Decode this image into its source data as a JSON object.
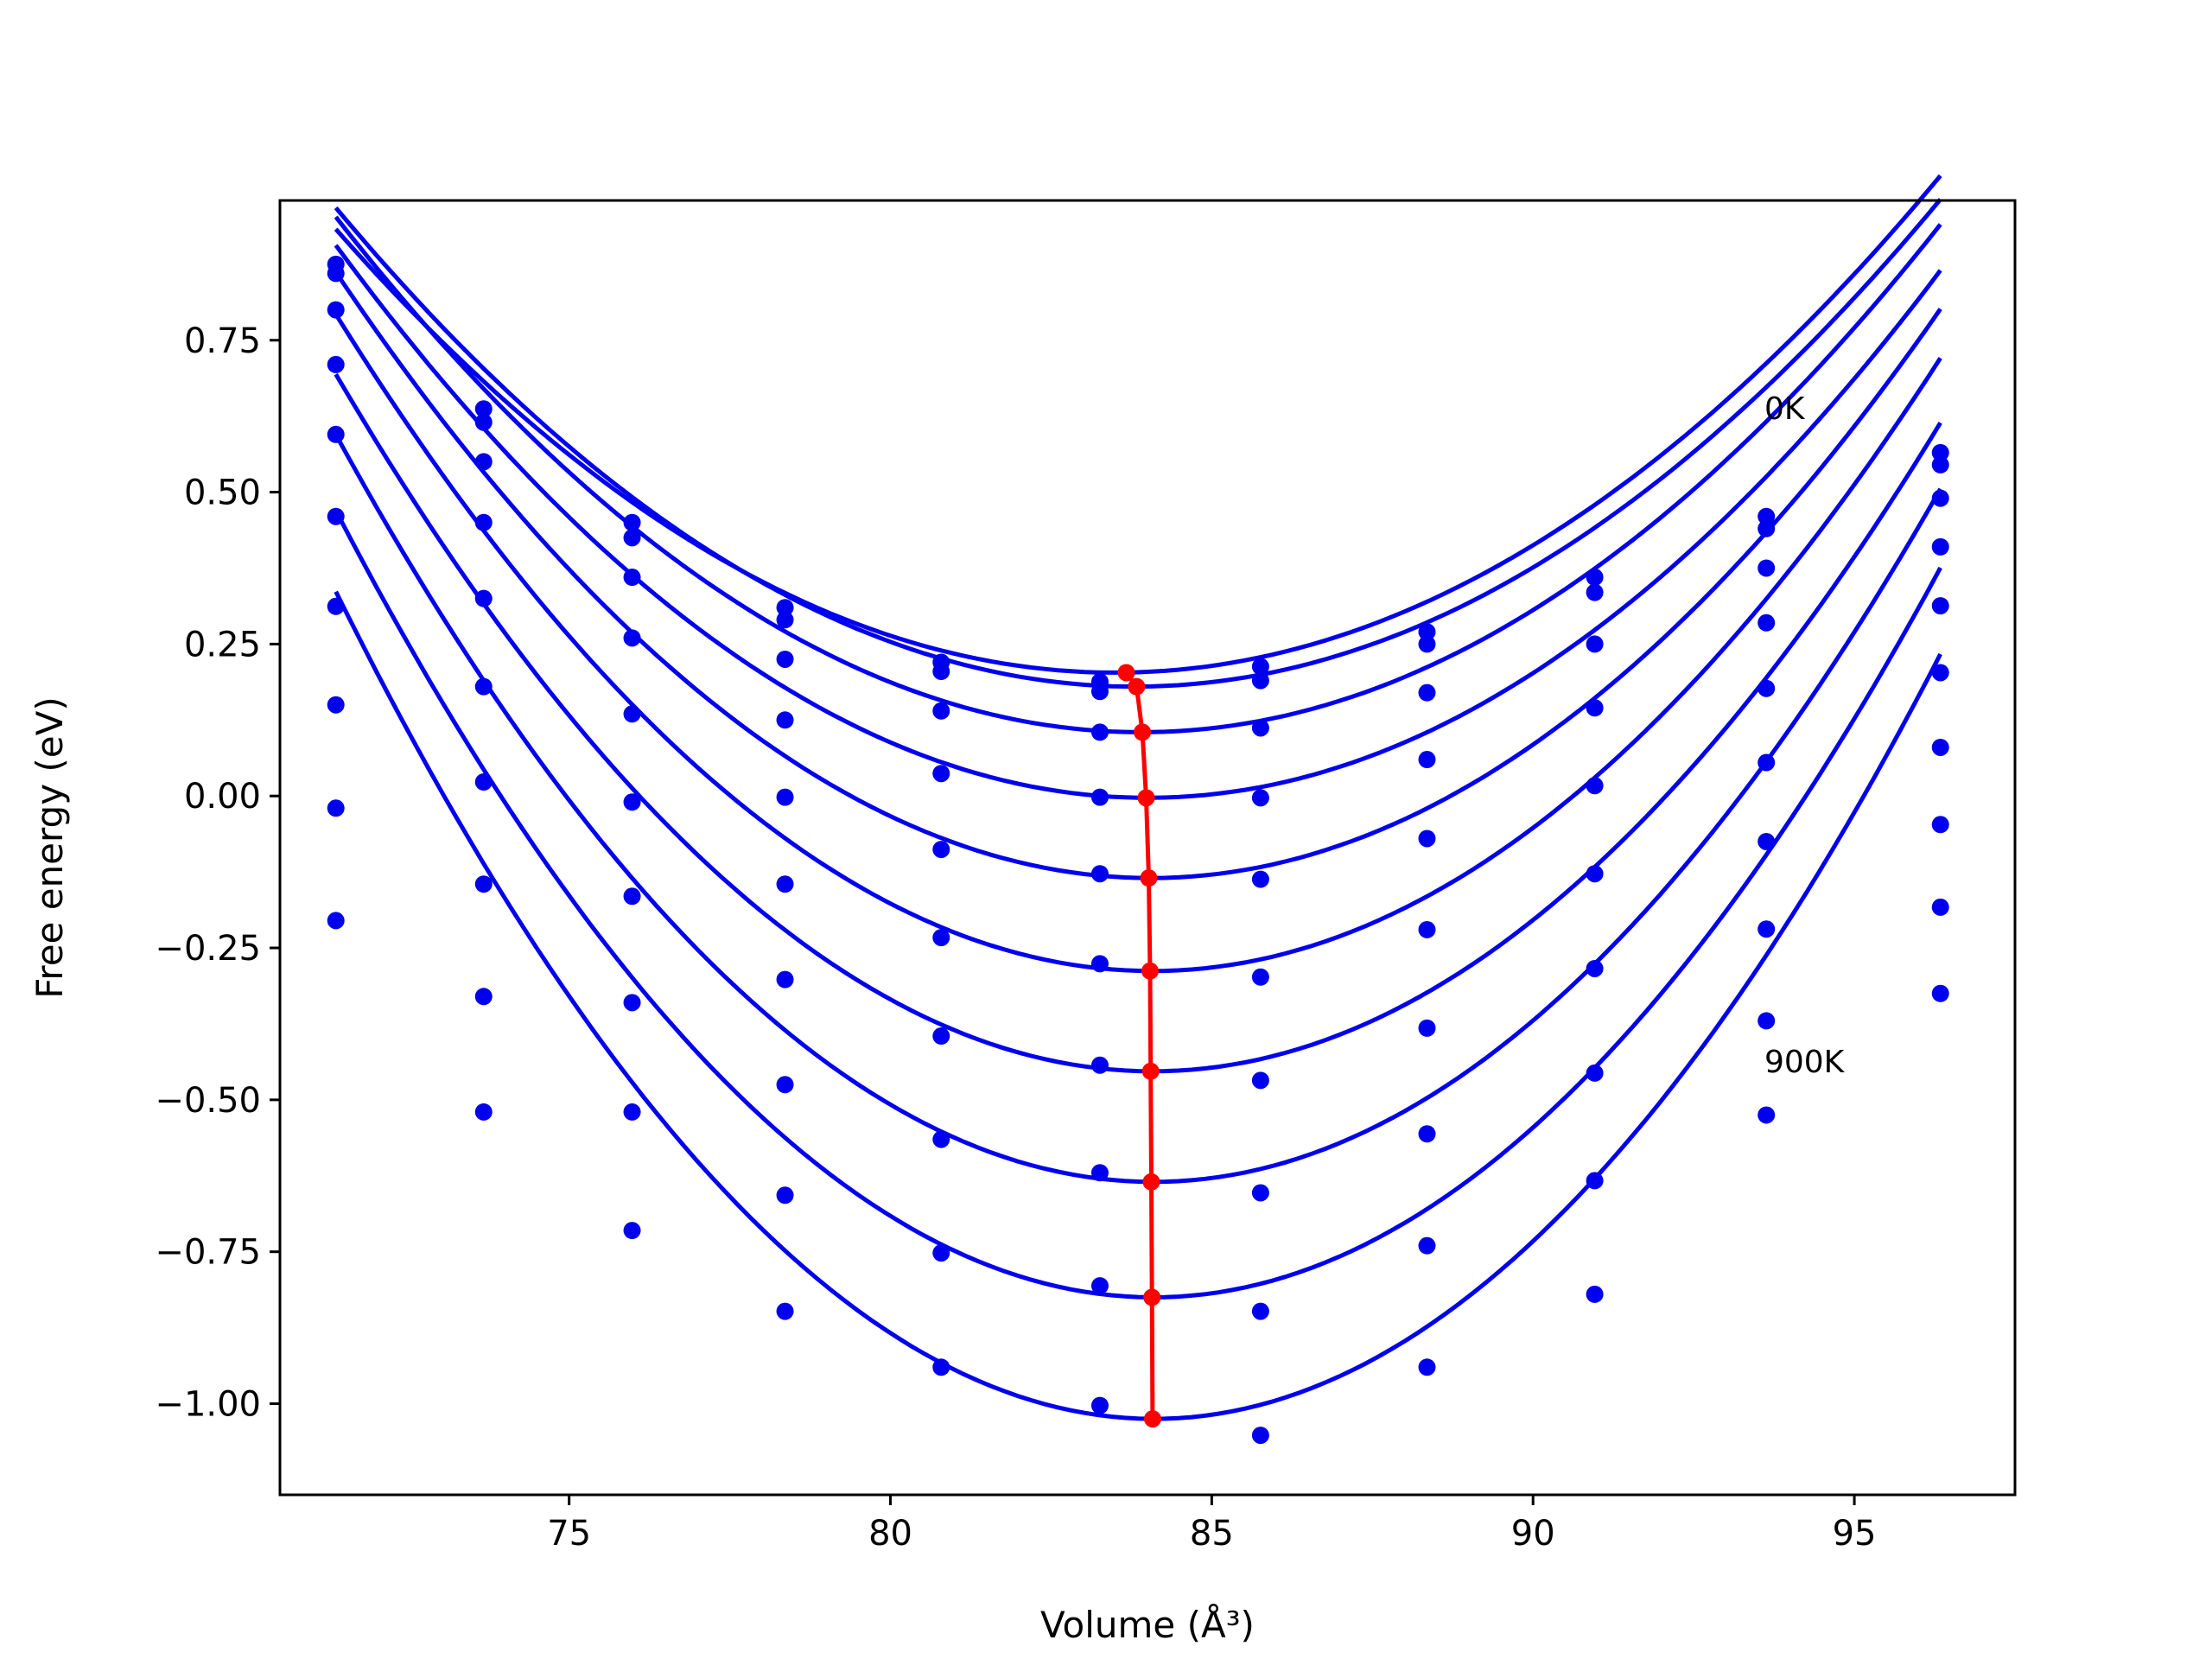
{
  "chart_data": {
    "type": "line",
    "title": "",
    "xlabel": "Volume (Å³)",
    "ylabel": "Free energy (eV)",
    "xlim": [
      70.5,
      97.5
    ],
    "ylim": [
      -1.15,
      0.98
    ],
    "xticks": [
      {
        "value": 75,
        "label": "75"
      },
      {
        "value": 80,
        "label": "80"
      },
      {
        "value": 85,
        "label": "85"
      },
      {
        "value": 90,
        "label": "90"
      },
      {
        "value": 95,
        "label": "95"
      }
    ],
    "yticks": [
      {
        "value": 0.75,
        "label": "0.75"
      },
      {
        "value": 0.5,
        "label": "0.50"
      },
      {
        "value": 0.25,
        "label": "0.25"
      },
      {
        "value": 0.0,
        "label": "0.00"
      },
      {
        "value": -0.25,
        "label": "−0.25"
      },
      {
        "value": -0.5,
        "label": "−0.50"
      },
      {
        "value": -0.75,
        "label": "−0.75"
      },
      {
        "value": -1.0,
        "label": "−1.00"
      }
    ],
    "grid": false,
    "annotations": [
      {
        "text": "0K",
        "x": 93.6,
        "y": 0.62
      },
      {
        "text": "900K",
        "x": 93.6,
        "y": -0.455
      }
    ],
    "volumes": [
      71.37,
      73.67,
      75.98,
      78.36,
      80.79,
      83.26,
      85.76,
      88.35,
      90.96,
      93.63,
      96.34
    ],
    "series": [
      {
        "points": [
          0.875,
          0.637,
          0.45,
          0.31,
          0.22,
          0.188,
          0.213,
          0.27,
          0.36,
          0.46,
          0.565
        ],
        "fit": {
          "a": 0.00496,
          "v0": 83.5,
          "e0": 0.203
        }
      },
      {
        "points": [
          0.86,
          0.615,
          0.425,
          0.29,
          0.205,
          0.172,
          0.19,
          0.25,
          0.335,
          0.44,
          0.545
        ],
        "fit": {
          "a": 0.0051,
          "v0": 83.8,
          "e0": 0.18
        }
      },
      {
        "points": [
          0.8,
          0.55,
          0.36,
          0.225,
          0.14,
          0.105,
          0.112,
          0.17,
          0.25,
          0.375,
          0.49
        ],
        "fit": {
          "a": 0.0054,
          "v0": 83.9,
          "e0": 0.105
        }
      },
      {
        "points": [
          0.71,
          0.45,
          0.26,
          0.125,
          0.037,
          -0.002,
          -0.003,
          0.06,
          0.145,
          0.285,
          0.41
        ],
        "fit": {
          "a": 0.0057,
          "v0": 84.0,
          "e0": -0.003
        }
      },
      {
        "points": [
          0.595,
          0.325,
          0.135,
          -0.002,
          -0.088,
          -0.128,
          -0.137,
          -0.07,
          0.017,
          0.177,
          0.313
        ],
        "fit": {
          "a": 0.0062,
          "v0": 84.05,
          "e0": -0.135
        }
      },
      {
        "points": [
          0.46,
          0.18,
          -0.01,
          -0.145,
          -0.233,
          -0.276,
          -0.298,
          -0.22,
          -0.128,
          0.055,
          0.203
        ],
        "fit": {
          "a": 0.0067,
          "v0": 84.07,
          "e0": -0.288
        }
      },
      {
        "points": [
          0.312,
          0.023,
          -0.165,
          -0.302,
          -0.395,
          -0.443,
          -0.468,
          -0.382,
          -0.284,
          -0.075,
          0.08
        ],
        "fit": {
          "a": 0.0071,
          "v0": 84.08,
          "e0": -0.453
        }
      },
      {
        "points": [
          0.15,
          -0.145,
          -0.34,
          -0.475,
          -0.565,
          -0.62,
          -0.653,
          -0.556,
          -0.456,
          -0.219,
          -0.047
        ],
        "fit": {
          "a": 0.0076,
          "v0": 84.09,
          "e0": -0.635
        }
      },
      {
        "points": [
          -0.02,
          -0.33,
          -0.52,
          -0.657,
          -0.752,
          -0.806,
          -0.848,
          -0.74,
          -0.633,
          -0.37,
          -0.183
        ],
        "fit": {
          "a": 0.008,
          "v0": 84.09,
          "e0": -0.825
        }
      },
      {
        "points": [
          -0.205,
          -0.52,
          -0.715,
          -0.848,
          -0.94,
          -1.003,
          -1.052,
          -0.94,
          -0.82,
          -0.525,
          -0.325
        ],
        "fit": {
          "a": 0.0084,
          "v0": 84.1,
          "e0": -1.025
        }
      }
    ],
    "minima": {
      "x": [
        83.67,
        83.83,
        83.92,
        83.98,
        84.02,
        84.04,
        84.05,
        84.06,
        84.07,
        84.08
      ],
      "y": [
        0.203,
        0.18,
        0.105,
        -0.003,
        -0.135,
        -0.288,
        -0.453,
        -0.635,
        -0.825,
        -1.025
      ]
    },
    "colors": {
      "fit": "#0000ee",
      "points": "#0000ee",
      "minima": "#ff0000",
      "axes": "#000000"
    }
  }
}
